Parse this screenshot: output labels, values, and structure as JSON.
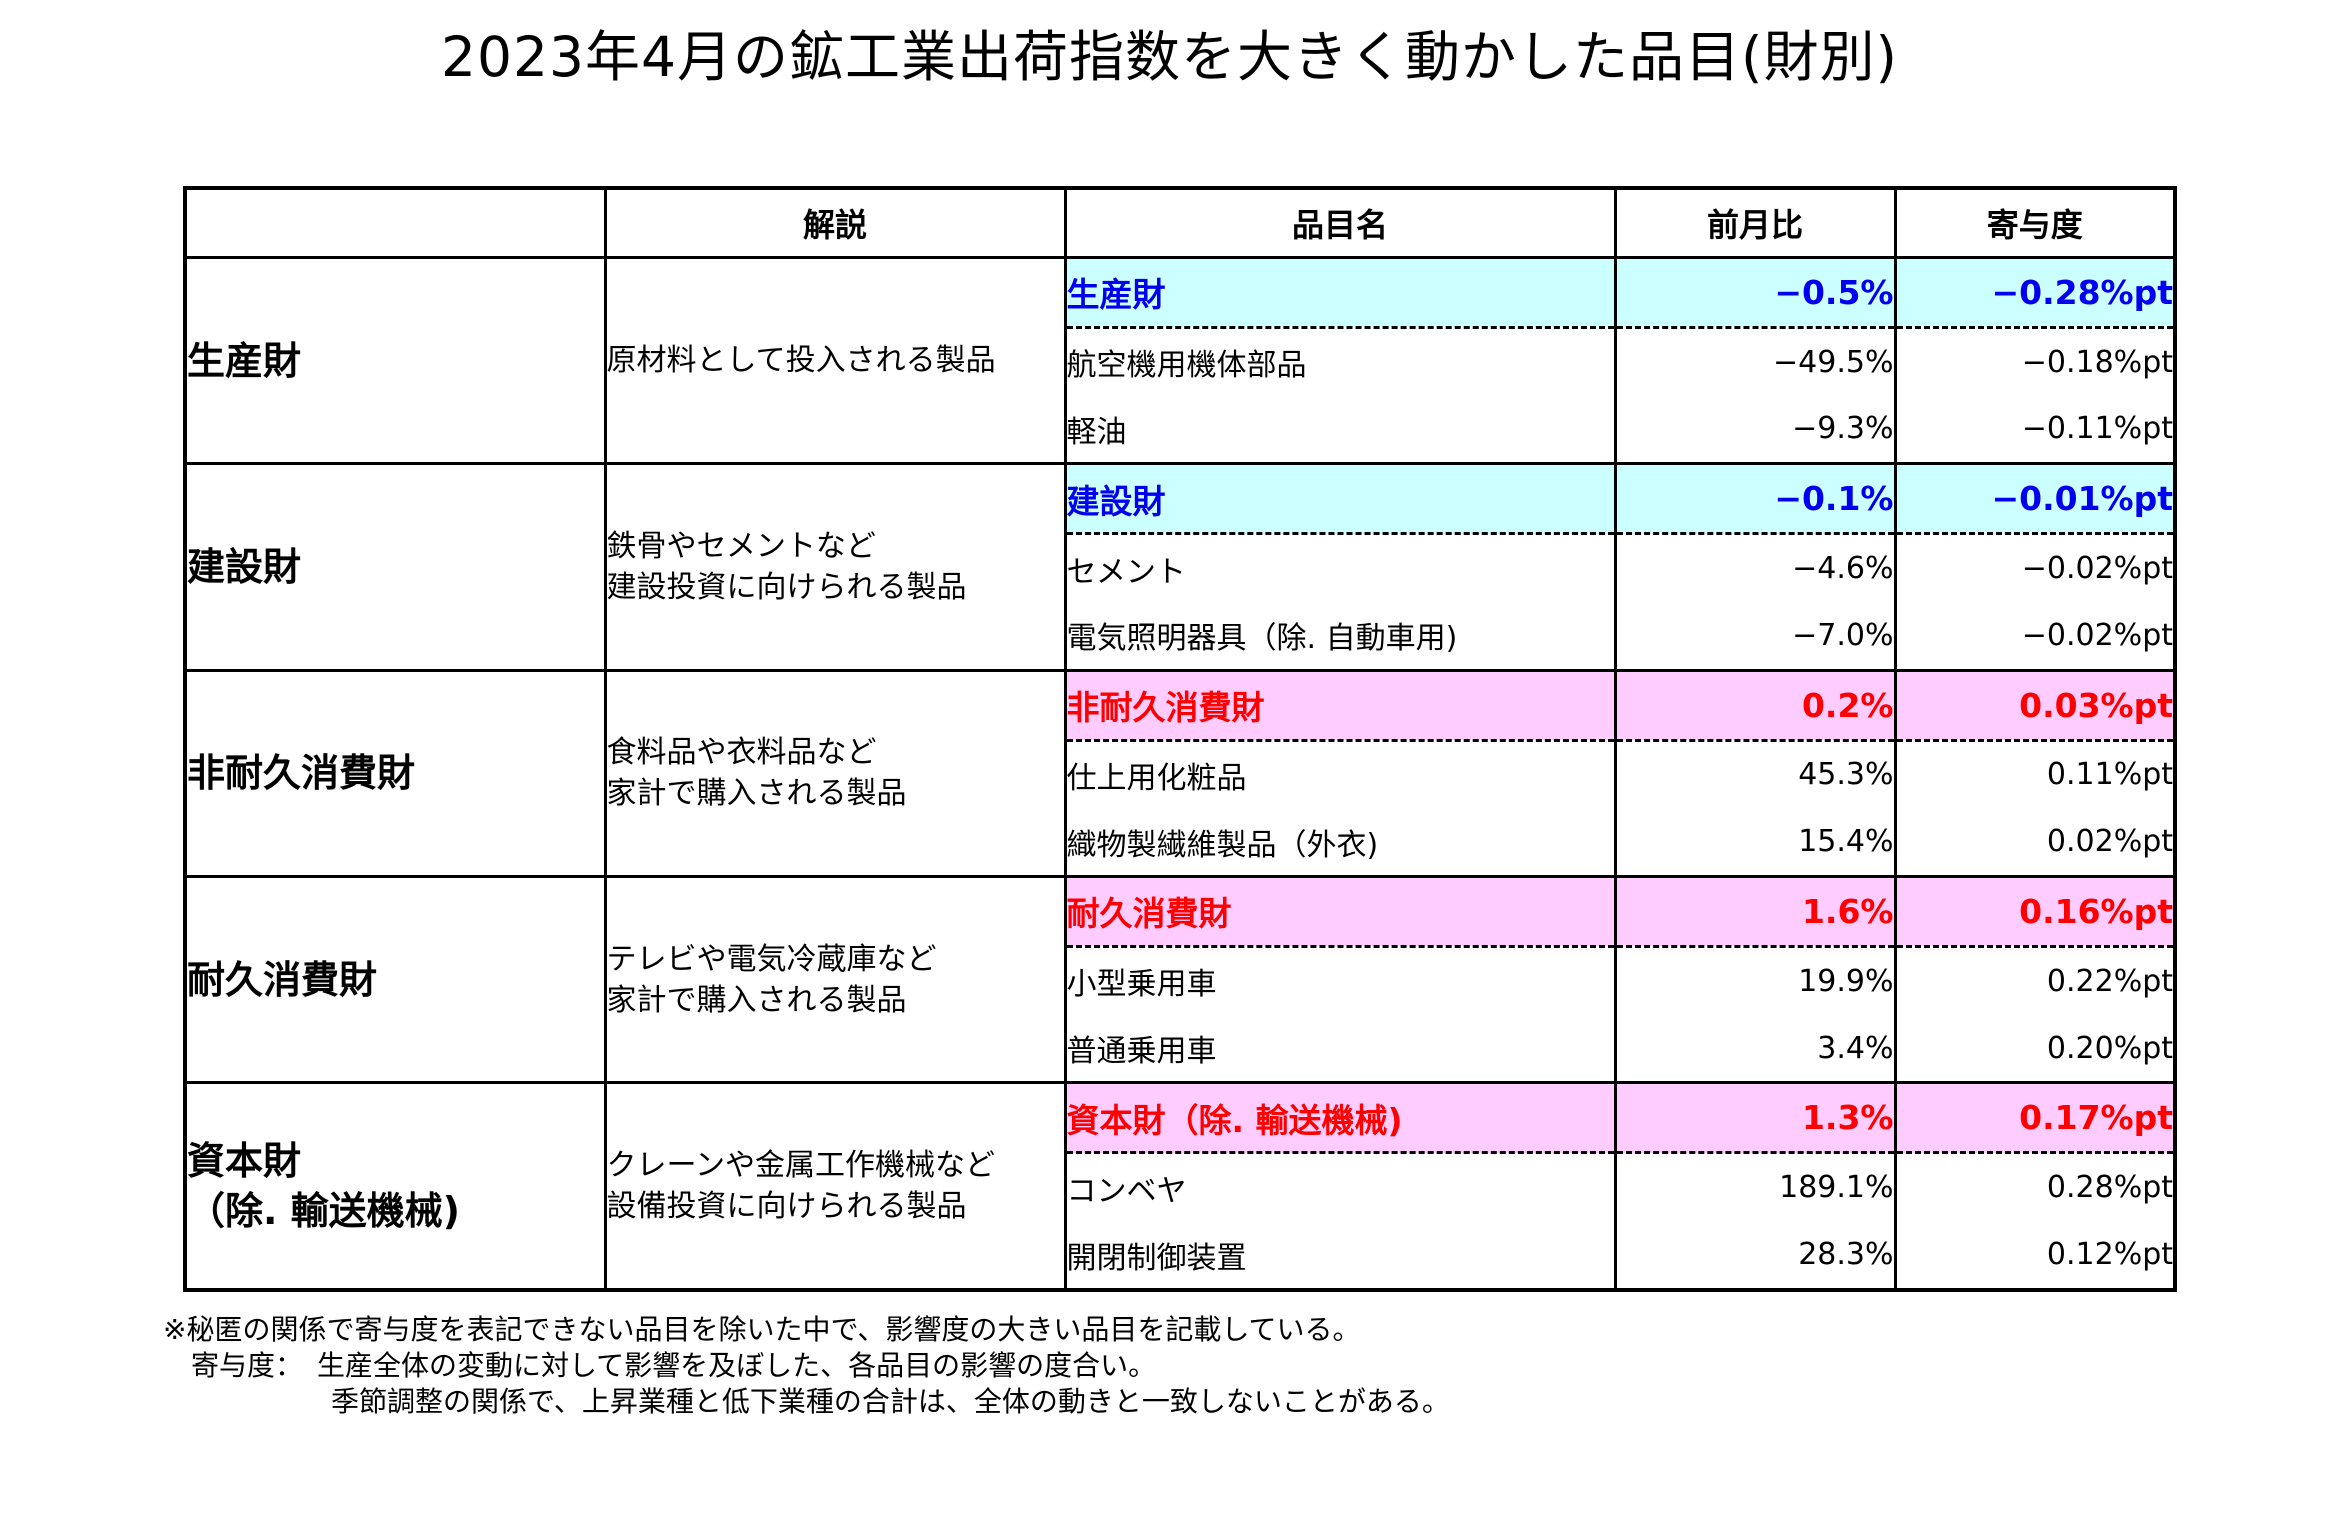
{
  "title": "2023年4月の鉱工業出荷指数を大きく動かした品目(財別)",
  "headers": {
    "category": "",
    "description": "解説",
    "item": "品目名",
    "mom": "前月比",
    "contribution": "寄与度"
  },
  "groups": [
    {
      "category": [
        "生産財"
      ],
      "description": [
        "原材料として投入される製品"
      ],
      "rows": [
        {
          "name": "生産財",
          "mom": "−0.5%",
          "contribution": "−0.28%pt"
        },
        {
          "name": "航空機用機体部品",
          "mom": "−49.5%",
          "contribution": "−0.18%pt"
        },
        {
          "name": "軽油",
          "mom": "−9.3%",
          "contribution": "−0.11%pt"
        }
      ]
    },
    {
      "category": [
        "建設財"
      ],
      "description": [
        "鉄骨やセメントなど",
        "建設投資に向けられる製品"
      ],
      "rows": [
        {
          "name": "建設財",
          "mom": "−0.1%",
          "contribution": "−0.01%pt"
        },
        {
          "name": "セメント",
          "mom": "−4.6%",
          "contribution": "−0.02%pt"
        },
        {
          "name": "電気照明器具（除. 自動車用)",
          "mom": "−7.0%",
          "contribution": "−0.02%pt"
        }
      ]
    },
    {
      "category": [
        "非耐久消費財"
      ],
      "description": [
        "食料品や衣料品など",
        "家計で購入される製品"
      ],
      "rows": [
        {
          "name": "非耐久消費財",
          "mom": "0.2%",
          "contribution": "0.03%pt"
        },
        {
          "name": "仕上用化粧品",
          "mom": "45.3%",
          "contribution": "0.11%pt"
        },
        {
          "name": "織物製繊維製品（外衣)",
          "mom": "15.4%",
          "contribution": "0.02%pt"
        }
      ]
    },
    {
      "category": [
        "耐久消費財"
      ],
      "description": [
        "テレビや電気冷蔵庫など",
        "家計で購入される製品"
      ],
      "rows": [
        {
          "name": "耐久消費財",
          "mom": "1.6%",
          "contribution": "0.16%pt"
        },
        {
          "name": "小型乗用車",
          "mom": "19.9%",
          "contribution": "0.22%pt"
        },
        {
          "name": "普通乗用車",
          "mom": "3.4%",
          "contribution": "0.20%pt"
        }
      ]
    },
    {
      "category": [
        "資本財",
        "（除. 輸送機械)"
      ],
      "description": [
        "クレーンや金属工作機械など",
        "設備投資に向けられる製品"
      ],
      "rows": [
        {
          "name": "資本財（除. 輸送機械)",
          "mom": "1.3%",
          "contribution": "0.17%pt"
        },
        {
          "name": "コンベヤ",
          "mom": "189.1%",
          "contribution": "0.28%pt"
        },
        {
          "name": "開閉制御装置",
          "mom": "28.3%",
          "contribution": "0.12%pt"
        }
      ]
    }
  ],
  "notes": [
    "※秘匿の関係で寄与度を表記できない品目を除いた中で、影響度の大きい品目を記載している。",
    "　寄与度：　生産全体の変動に対して影響を及ぼした、各品目の影響の度合い。",
    "　　　　　　季節調整の関係で、上昇業種と低下業種の合計は、全体の動きと一致しないことがある。"
  ],
  "colors": {
    "producer_fill": "#ccffff",
    "producer_text": "#0000ee",
    "consumer_fill": "#ffccff",
    "consumer_text": "#ff0000"
  }
}
